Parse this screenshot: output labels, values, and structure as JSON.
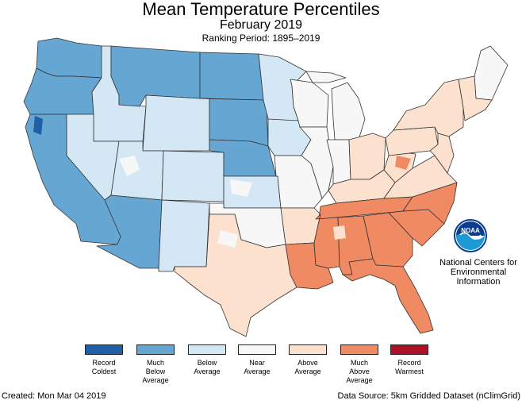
{
  "header": {
    "title": "Mean Temperature Percentiles",
    "subtitle": "February 2019",
    "ranking_period": "Ranking Period: 1895–2019"
  },
  "colors": {
    "record_coldest": "#1f5fa8",
    "much_below": "#66a6d3",
    "below": "#d3e7f4",
    "near": "#f7f7f7",
    "above": "#fde1cf",
    "much_above": "#f08a62",
    "record_warmest": "#b01025",
    "border": "#333333"
  },
  "legend": {
    "items": [
      {
        "key": "record_coldest",
        "label": "Record\nColdest",
        "color": "#1f5fa8"
      },
      {
        "key": "much_below",
        "label": "Much\nBelow\nAverage",
        "color": "#66a6d3"
      },
      {
        "key": "below",
        "label": "Below\nAverage",
        "color": "#d3e7f4"
      },
      {
        "key": "near",
        "label": "Near\nAverage",
        "color": "#f7f7f7"
      },
      {
        "key": "above",
        "label": "Above\nAverage",
        "color": "#fde1cf"
      },
      {
        "key": "much_above",
        "label": "Much\nAbove\nAverage",
        "color": "#f08a62"
      },
      {
        "key": "record_warmest",
        "label": "Record\nWarmest",
        "color": "#b01025"
      }
    ]
  },
  "logo": {
    "text": "NOAA",
    "org_name": "National Centers for\nEnvironmental\nInformation"
  },
  "footer": {
    "created": "Created: Mon Mar 04 2019",
    "source": "Data Source: 5km Gridded Dataset (nClimGrid)"
  },
  "map": {
    "regions": [
      {
        "name": "Washington",
        "category": "much_below"
      },
      {
        "name": "Oregon",
        "category": "much_below"
      },
      {
        "name": "California",
        "category": "much_below"
      },
      {
        "name": "Idaho",
        "category": "below"
      },
      {
        "name": "Nevada",
        "category": "below"
      },
      {
        "name": "Montana",
        "category": "much_below"
      },
      {
        "name": "Wyoming",
        "category": "below"
      },
      {
        "name": "Utah",
        "category": "below"
      },
      {
        "name": "Arizona",
        "category": "much_below"
      },
      {
        "name": "Colorado",
        "category": "below"
      },
      {
        "name": "New Mexico",
        "category": "below"
      },
      {
        "name": "North Dakota",
        "category": "much_below"
      },
      {
        "name": "South Dakota",
        "category": "much_below"
      },
      {
        "name": "Nebraska",
        "category": "much_below"
      },
      {
        "name": "Kansas",
        "category": "below"
      },
      {
        "name": "Oklahoma",
        "category": "near"
      },
      {
        "name": "Texas",
        "category": "above"
      },
      {
        "name": "Minnesota",
        "category": "below"
      },
      {
        "name": "Iowa",
        "category": "below"
      },
      {
        "name": "Missouri",
        "category": "near"
      },
      {
        "name": "Arkansas",
        "category": "above"
      },
      {
        "name": "Louisiana",
        "category": "much_above"
      },
      {
        "name": "Wisconsin",
        "category": "near"
      },
      {
        "name": "Illinois",
        "category": "near"
      },
      {
        "name": "Michigan",
        "category": "near"
      },
      {
        "name": "Indiana",
        "category": "near"
      },
      {
        "name": "Ohio",
        "category": "above"
      },
      {
        "name": "Kentucky",
        "category": "above"
      },
      {
        "name": "Tennessee",
        "category": "much_above"
      },
      {
        "name": "Mississippi",
        "category": "much_above"
      },
      {
        "name": "Alabama",
        "category": "much_above"
      },
      {
        "name": "Georgia",
        "category": "much_above"
      },
      {
        "name": "Florida",
        "category": "much_above"
      },
      {
        "name": "South Carolina",
        "category": "much_above"
      },
      {
        "name": "North Carolina",
        "category": "much_above"
      },
      {
        "name": "Virginia",
        "category": "above"
      },
      {
        "name": "West Virginia",
        "category": "above"
      },
      {
        "name": "Pennsylvania",
        "category": "above"
      },
      {
        "name": "New York",
        "category": "above"
      },
      {
        "name": "Maine",
        "category": "near"
      },
      {
        "name": "New England",
        "category": "above"
      },
      {
        "name": "Mid-Atlantic",
        "category": "above"
      }
    ]
  }
}
